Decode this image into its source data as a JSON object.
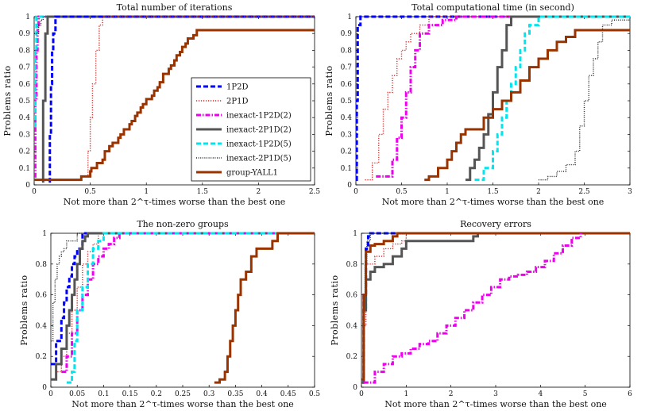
{
  "figure": {
    "y_axis_label": "Problems ratio",
    "x_axis_label": "Not more than 2^τ-times worse than the best one"
  },
  "legend": [
    {
      "label": "1P2D",
      "color": "#0000ff",
      "dash": "6,3",
      "width": 3
    },
    {
      "label": "2P1D",
      "color": "#dd2222",
      "dash": "1.2,1.8",
      "width": 1.4
    },
    {
      "label": "inexact-1P2D(2)",
      "color": "#ee00ee",
      "dash": "6,2,1.5,2",
      "width": 3
    },
    {
      "label": "inexact-2P1D(2)",
      "color": "#555555",
      "dash": "",
      "width": 3
    },
    {
      "label": "inexact-1P2D(5)",
      "color": "#00e5ee",
      "dash": "6,3",
      "width": 3
    },
    {
      "label": "inexact-2P1D(5)",
      "color": "#222222",
      "dash": "1,1.6",
      "width": 1.4
    },
    {
      "label": "group-YALL1",
      "color": "#993300",
      "dash": "",
      "width": 3
    }
  ],
  "chart_data": [
    {
      "type": "line",
      "title": "Total number of iterations",
      "xlabel": "Not more than 2^τ-times worse than the best one",
      "ylabel": "Problems ratio",
      "xlim": [
        0,
        2.5
      ],
      "ylim": [
        0,
        1
      ],
      "xticks": [
        "0",
        "0.5",
        "1",
        "1.5",
        "2",
        "2.5"
      ],
      "yticks": [
        "0",
        "0.1",
        "0.2",
        "0.3",
        "0.4",
        "0.5",
        "0.6",
        "0.7",
        "0.8",
        "0.9",
        "1"
      ],
      "series": [
        {
          "name": "inexact-1P2D(2)",
          "x": [
            0,
            0.01,
            0.02,
            0.03,
            0.04,
            2.5
          ],
          "y": [
            0.05,
            0.5,
            0.8,
            0.95,
            1.0,
            1.0
          ]
        },
        {
          "name": "inexact-1P2D(5)",
          "x": [
            0,
            0.01,
            0.02,
            2.5
          ],
          "y": [
            0.35,
            0.8,
            1.0,
            1.0
          ]
        },
        {
          "name": "inexact-2P1D(5)",
          "x": [
            0,
            0.04,
            0.06,
            0.08,
            2.5
          ],
          "y": [
            0.9,
            0.95,
            0.98,
            1.0,
            1.0
          ]
        },
        {
          "name": "inexact-2P1D(2)",
          "x": [
            0.07,
            0.08,
            0.1,
            0.12,
            2.5
          ],
          "y": [
            0.02,
            0.5,
            0.9,
            1.0,
            1.0
          ]
        },
        {
          "name": "1P2D",
          "x": [
            0.13,
            0.14,
            0.15,
            0.16,
            0.17,
            0.19,
            2.5
          ],
          "y": [
            0.02,
            0.3,
            0.6,
            0.8,
            0.9,
            1.0,
            1.0
          ]
        },
        {
          "name": "2P1D",
          "x": [
            0.45,
            0.48,
            0.5,
            0.52,
            0.55,
            0.58,
            0.61,
            2.5
          ],
          "y": [
            0.05,
            0.2,
            0.4,
            0.6,
            0.8,
            0.95,
            1.0,
            1.0
          ]
        },
        {
          "name": "group-YALL1",
          "x": [
            0,
            0.28,
            0.31,
            0.42,
            0.44,
            0.5,
            0.51,
            0.55,
            0.56,
            0.61,
            0.63,
            0.65,
            0.67,
            0.7,
            0.72,
            0.75,
            0.77,
            0.8,
            0.82,
            0.85,
            0.87,
            0.9,
            0.92,
            0.95,
            0.97,
            1.0,
            1.02,
            1.05,
            1.07,
            1.1,
            1.12,
            1.15,
            1.17,
            1.2,
            1.22,
            1.25,
            1.27,
            1.3,
            1.32,
            1.35,
            1.37,
            1.4,
            1.42,
            1.45,
            1.5,
            2.5
          ],
          "y": [
            0.03,
            0.03,
            0.03,
            0.05,
            0.05,
            0.08,
            0.1,
            0.1,
            0.13,
            0.15,
            0.2,
            0.2,
            0.23,
            0.25,
            0.25,
            0.28,
            0.3,
            0.33,
            0.33,
            0.36,
            0.38,
            0.41,
            0.43,
            0.46,
            0.48,
            0.51,
            0.51,
            0.53,
            0.56,
            0.58,
            0.61,
            0.66,
            0.66,
            0.69,
            0.71,
            0.74,
            0.77,
            0.79,
            0.82,
            0.84,
            0.87,
            0.87,
            0.89,
            0.92,
            0.92,
            0.92
          ]
        }
      ]
    },
    {
      "type": "line",
      "title": "Total computational time (in second)",
      "xlabel": "Not more than 2^τ-times worse than the best one",
      "ylabel": "Problems ratio",
      "xlim": [
        0,
        3
      ],
      "ylim": [
        0,
        1
      ],
      "xticks": [
        "0",
        "0.5",
        "1",
        "1.5",
        "2",
        "2.5",
        "3"
      ],
      "yticks": [
        "0",
        "0.1",
        "0.2",
        "0.3",
        "0.4",
        "0.5",
        "0.6",
        "0.7",
        "0.8",
        "0.9",
        "1"
      ],
      "series": [
        {
          "name": "1P2D",
          "x": [
            0.0,
            0.01,
            0.02,
            0.05,
            3.0
          ],
          "y": [
            0.03,
            0.5,
            0.95,
            1.0,
            1.0
          ]
        },
        {
          "name": "2P1D",
          "x": [
            0.1,
            0.18,
            0.25,
            0.3,
            0.35,
            0.4,
            0.45,
            0.5,
            0.55,
            0.6,
            0.7,
            0.8,
            3.0
          ],
          "y": [
            0.03,
            0.13,
            0.3,
            0.45,
            0.55,
            0.65,
            0.75,
            0.8,
            0.85,
            0.9,
            0.95,
            1.0,
            1.0
          ]
        },
        {
          "name": "inexact-1P2D(2)",
          "x": [
            0.22,
            0.35,
            0.4,
            0.45,
            0.5,
            0.55,
            0.6,
            0.65,
            0.7,
            0.8,
            0.95,
            1.1,
            3.0
          ],
          "y": [
            0.05,
            0.05,
            0.15,
            0.28,
            0.4,
            0.55,
            0.7,
            0.8,
            0.9,
            0.95,
            0.98,
            1.0,
            1.0
          ]
        },
        {
          "name": "inexact-2P1D(2)",
          "x": [
            1.2,
            1.25,
            1.3,
            1.35,
            1.4,
            1.45,
            1.5,
            1.55,
            1.6,
            1.65,
            1.7,
            3.0
          ],
          "y": [
            0.03,
            0.1,
            0.15,
            0.22,
            0.3,
            0.42,
            0.55,
            0.7,
            0.8,
            0.95,
            1.0,
            1.0
          ]
        },
        {
          "name": "inexact-1P2D(5)",
          "x": [
            1.3,
            1.4,
            1.5,
            1.55,
            1.6,
            1.65,
            1.7,
            1.75,
            1.8,
            1.85,
            1.9,
            2.0,
            3.0
          ],
          "y": [
            0.03,
            0.1,
            0.2,
            0.3,
            0.4,
            0.5,
            0.6,
            0.7,
            0.8,
            0.9,
            0.95,
            1.0,
            1.0
          ]
        },
        {
          "name": "inexact-2P1D(5)",
          "x": [
            2.0,
            2.1,
            2.2,
            2.3,
            2.4,
            2.45,
            2.5,
            2.55,
            2.6,
            2.65,
            2.7,
            2.8,
            3.0
          ],
          "y": [
            0.03,
            0.05,
            0.08,
            0.12,
            0.2,
            0.35,
            0.5,
            0.65,
            0.75,
            0.85,
            0.95,
            0.98,
            0.98
          ]
        },
        {
          "name": "group-YALL1",
          "x": [
            0.75,
            0.8,
            0.9,
            1.0,
            1.05,
            1.1,
            1.15,
            1.2,
            1.25,
            1.3,
            1.4,
            1.5,
            1.6,
            1.7,
            1.8,
            1.9,
            2.0,
            2.1,
            2.2,
            2.3,
            2.4,
            2.5,
            2.6,
            2.8,
            3.0
          ],
          "y": [
            0.03,
            0.05,
            0.1,
            0.15,
            0.2,
            0.25,
            0.3,
            0.33,
            0.33,
            0.33,
            0.4,
            0.45,
            0.5,
            0.55,
            0.62,
            0.7,
            0.75,
            0.8,
            0.85,
            0.88,
            0.92,
            0.92,
            0.92,
            0.92,
            0.92
          ]
        }
      ]
    },
    {
      "type": "line",
      "title": "The non-zero groups",
      "xlabel": "Not more than 2^τ-times worse than the best one",
      "ylabel": "Problems ratio",
      "xlim": [
        0,
        0.5
      ],
      "ylim": [
        0,
        1
      ],
      "xticks": [
        "0",
        "0.05",
        "0.1",
        "0.15",
        "0.2",
        "0.25",
        "0.3",
        "0.35",
        "0.4",
        "0.45",
        "0.5"
      ],
      "yticks": [
        "0",
        "0.2",
        "0.4",
        "0.6",
        "0.8",
        "1"
      ],
      "series": [
        {
          "name": "inexact-2P1D(5)",
          "x": [
            0.0,
            0.004,
            0.008,
            0.012,
            0.016,
            0.02,
            0.025,
            0.03,
            0.05,
            0.5
          ],
          "y": [
            0.3,
            0.55,
            0.7,
            0.8,
            0.85,
            0.88,
            0.9,
            0.95,
            1.0,
            1.0
          ]
        },
        {
          "name": "1P2D",
          "x": [
            0.0,
            0.01,
            0.02,
            0.025,
            0.03,
            0.035,
            0.04,
            0.045,
            0.05,
            0.06,
            0.5
          ],
          "y": [
            0.15,
            0.3,
            0.45,
            0.55,
            0.65,
            0.72,
            0.8,
            0.85,
            0.9,
            1.0,
            1.0
          ]
        },
        {
          "name": "2P1D",
          "x": [
            0.0,
            0.01,
            0.02,
            0.03,
            0.04,
            0.05,
            0.06,
            0.07,
            0.08,
            0.09,
            0.5
          ],
          "y": [
            0.05,
            0.1,
            0.2,
            0.35,
            0.5,
            0.65,
            0.8,
            0.88,
            0.93,
            1.0,
            1.0
          ]
        },
        {
          "name": "inexact-2P1D(2)",
          "x": [
            0.0,
            0.01,
            0.02,
            0.03,
            0.035,
            0.04,
            0.045,
            0.05,
            0.055,
            0.06,
            0.065,
            0.07,
            0.5
          ],
          "y": [
            0.05,
            0.15,
            0.25,
            0.4,
            0.5,
            0.6,
            0.7,
            0.8,
            0.9,
            0.95,
            0.98,
            1.0,
            1.0
          ]
        },
        {
          "name": "inexact-1P2D(2)",
          "x": [
            0.02,
            0.03,
            0.04,
            0.05,
            0.06,
            0.07,
            0.08,
            0.09,
            0.1,
            0.11,
            0.12,
            0.13,
            0.5
          ],
          "y": [
            0.1,
            0.2,
            0.35,
            0.5,
            0.6,
            0.7,
            0.8,
            0.85,
            0.9,
            0.93,
            0.97,
            1.0,
            1.0
          ]
        },
        {
          "name": "inexact-1P2D(5)",
          "x": [
            0.03,
            0.04,
            0.045,
            0.05,
            0.06,
            0.07,
            0.08,
            0.09,
            0.1,
            0.5
          ],
          "y": [
            0.03,
            0.1,
            0.3,
            0.5,
            0.65,
            0.8,
            0.9,
            0.95,
            1.0,
            1.0
          ]
        },
        {
          "name": "group-YALL1",
          "x": [
            0.31,
            0.32,
            0.33,
            0.335,
            0.34,
            0.345,
            0.35,
            0.355,
            0.36,
            0.37,
            0.38,
            0.39,
            0.4,
            0.42,
            0.43,
            0.5
          ],
          "y": [
            0.03,
            0.05,
            0.1,
            0.2,
            0.3,
            0.4,
            0.5,
            0.6,
            0.7,
            0.75,
            0.85,
            0.9,
            0.9,
            0.95,
            1.0,
            1.0
          ]
        }
      ]
    },
    {
      "type": "line",
      "title": "Recovery errors",
      "xlabel": "Not more than 2^τ-times worse than the best one",
      "ylabel": "Problems ratio",
      "xlim": [
        0,
        6
      ],
      "ylim": [
        0,
        1
      ],
      "xticks": [
        "0",
        "1",
        "2",
        "3",
        "4",
        "5",
        "6"
      ],
      "yticks": [
        "0",
        "0.2",
        "0.4",
        "0.6",
        "0.8",
        "1"
      ],
      "series": [
        {
          "name": "inexact-1P2D(5)",
          "x": [
            0.0,
            0.05,
            0.1,
            0.15,
            0.2,
            6.0
          ],
          "y": [
            0.03,
            0.5,
            0.9,
            0.98,
            1.0,
            1.0
          ]
        },
        {
          "name": "1P2D",
          "x": [
            0.0,
            0.05,
            0.1,
            0.15,
            0.2,
            6.0
          ],
          "y": [
            0.03,
            0.6,
            0.9,
            0.98,
            1.0,
            1.0
          ]
        },
        {
          "name": "inexact-2P1D(5)",
          "x": [
            0.0,
            0.05,
            0.08,
            0.12,
            0.2,
            6.0
          ],
          "y": [
            0.05,
            0.55,
            0.8,
            0.95,
            1.0,
            1.0
          ]
        },
        {
          "name": "2P1D",
          "x": [
            0.0,
            0.05,
            0.1,
            0.3,
            0.5,
            0.7,
            0.9,
            1.0,
            6.0
          ],
          "y": [
            0.05,
            0.4,
            0.8,
            0.85,
            0.9,
            0.93,
            0.95,
            1.0,
            1.0
          ]
        },
        {
          "name": "inexact-2P1D(2)",
          "x": [
            0.0,
            0.05,
            0.1,
            0.2,
            0.3,
            0.5,
            0.7,
            0.9,
            1.0,
            2.0,
            2.5,
            2.6,
            6.0
          ],
          "y": [
            0.03,
            0.5,
            0.7,
            0.75,
            0.78,
            0.8,
            0.85,
            0.9,
            0.95,
            0.95,
            0.98,
            1.0,
            1.0
          ]
        },
        {
          "name": "group-YALL1",
          "x": [
            0.0,
            0.05,
            0.1,
            0.2,
            0.3,
            0.5,
            0.7,
            0.8,
            6.0
          ],
          "y": [
            0.05,
            0.6,
            0.88,
            0.92,
            0.93,
            0.95,
            0.98,
            1.0,
            1.0
          ]
        },
        {
          "name": "inexact-1P2D(2)",
          "x": [
            0.05,
            0.3,
            0.5,
            0.7,
            0.9,
            1.1,
            1.3,
            1.5,
            1.7,
            1.9,
            2.1,
            2.3,
            2.5,
            2.7,
            2.9,
            3.1,
            3.3,
            3.5,
            3.7,
            3.9,
            4.1,
            4.3,
            4.5,
            4.7,
            4.9
          ],
          "y": [
            0.03,
            0.1,
            0.15,
            0.2,
            0.22,
            0.25,
            0.28,
            0.3,
            0.35,
            0.4,
            0.45,
            0.5,
            0.55,
            0.6,
            0.65,
            0.7,
            0.72,
            0.73,
            0.75,
            0.78,
            0.82,
            0.87,
            0.92,
            0.97,
            1.0
          ]
        }
      ]
    }
  ]
}
